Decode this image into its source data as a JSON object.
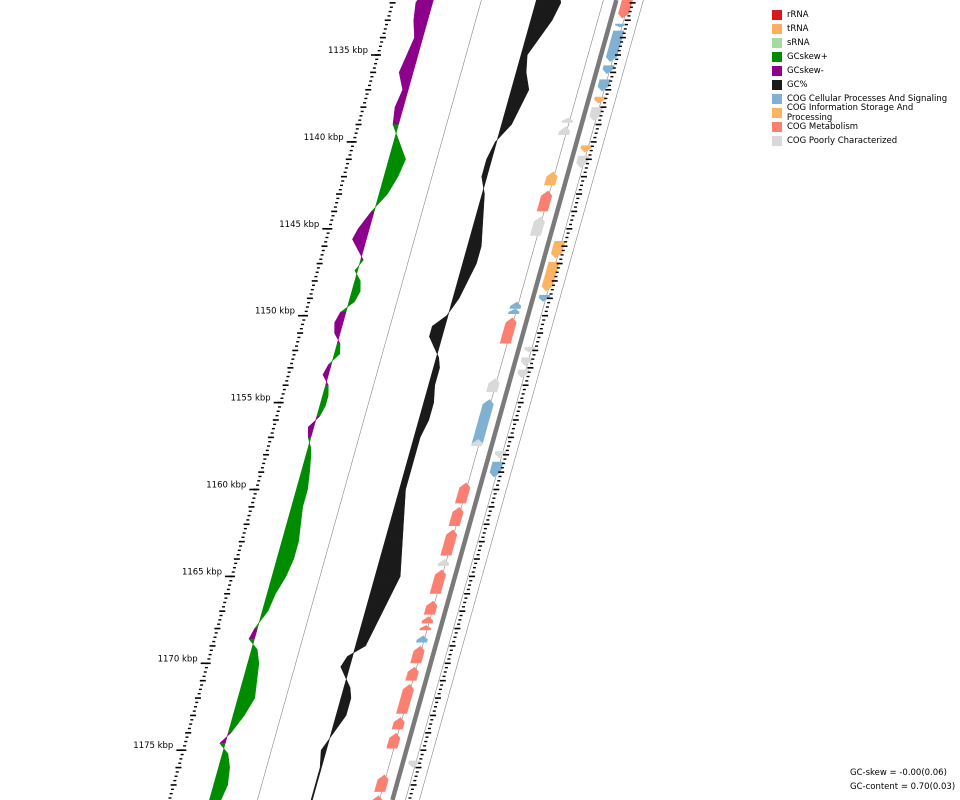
{
  "legend": [
    {
      "label": "rRNA",
      "color": "#d7191c"
    },
    {
      "label": "tRNA",
      "color": "#fdae61"
    },
    {
      "label": "sRNA",
      "color": "#a6dba0"
    },
    {
      "label": "GCskew+",
      "color": "#008c00"
    },
    {
      "label": "GCskew-",
      "color": "#8c008c"
    },
    {
      "label": "GC%",
      "color": "#1a1a1a"
    },
    {
      "label": "COG Cellular Processes And Signaling",
      "color": "#80b1d3"
    },
    {
      "label": "COG Information Storage And Processing",
      "color": "#fdb462"
    },
    {
      "label": "COG Metabolism",
      "color": "#fb8072"
    },
    {
      "label": "COG Poorly Characterized",
      "color": "#d9d9d9"
    }
  ],
  "stats": {
    "gc_skew": "GC-skew = -0.00(0.06)",
    "gc_content": "GC-content = 0.70(0.03)"
  },
  "ticks": [
    {
      "kbp": 1135,
      "label": "1135 kbp"
    },
    {
      "kbp": 1140,
      "label": "1140 kbp"
    },
    {
      "kbp": 1145,
      "label": "1145 kbp"
    },
    {
      "kbp": 1150,
      "label": "1150 kbp"
    },
    {
      "kbp": 1155,
      "label": "1155 kbp"
    },
    {
      "kbp": 1160,
      "label": "1160 kbp"
    },
    {
      "kbp": 1165,
      "label": "1165 kbp"
    },
    {
      "kbp": 1170,
      "label": "1170 kbp"
    },
    {
      "kbp": 1175,
      "label": "1175 kbp"
    }
  ],
  "genes": [
    {
      "start": 1131.0,
      "end": 1131.6,
      "strand": "-",
      "cog": "COG Metabolism"
    },
    {
      "start": 1131.8,
      "end": 1132.9,
      "strand": "-",
      "cog": "COG Metabolism"
    },
    {
      "start": 1133.2,
      "end": 1133.4,
      "strand": "-",
      "cog": "COG Cellular Processes And Signaling"
    },
    {
      "start": 1133.6,
      "end": 1135.4,
      "strand": "-",
      "cog": "COG Cellular Processes And Signaling"
    },
    {
      "start": 1135.6,
      "end": 1136.1,
      "strand": "-",
      "cog": "COG Cellular Processes And Signaling"
    },
    {
      "start": 1136.4,
      "end": 1137.1,
      "strand": "-",
      "cog": "COG Cellular Processes And Signaling"
    },
    {
      "start": 1137.4,
      "end": 1137.8,
      "strand": "-",
      "cog": "COG Information Storage And Processing"
    },
    {
      "start": 1138.0,
      "end": 1138.8,
      "strand": "-",
      "cog": "COG Poorly Characterized"
    },
    {
      "start": 1138.6,
      "end": 1138.9,
      "strand": "+",
      "cog": "COG Poorly Characterized"
    },
    {
      "start": 1139.1,
      "end": 1139.6,
      "strand": "+",
      "cog": "COG Poorly Characterized"
    },
    {
      "start": 1140.2,
      "end": 1140.6,
      "strand": "-",
      "cog": "COG Information Storage And Processing"
    },
    {
      "start": 1140.8,
      "end": 1141.5,
      "strand": "-",
      "cog": "COG Poorly Characterized"
    },
    {
      "start": 1141.7,
      "end": 1142.5,
      "strand": "+",
      "cog": "COG Information Storage And Processing"
    },
    {
      "start": 1142.8,
      "end": 1144.0,
      "strand": "+",
      "cog": "COG Metabolism"
    },
    {
      "start": 1144.3,
      "end": 1145.4,
      "strand": "+",
      "cog": "COG Poorly Characterized"
    },
    {
      "start": 1145.7,
      "end": 1146.7,
      "strand": "-",
      "cog": "COG Information Storage And Processing"
    },
    {
      "start": 1146.9,
      "end": 1148.6,
      "strand": "-",
      "cog": "COG Information Storage And Processing"
    },
    {
      "start": 1148.8,
      "end": 1149.2,
      "strand": "-",
      "cog": "COG Cellular Processes And Signaling"
    },
    {
      "start": 1149.2,
      "end": 1149.6,
      "strand": "+",
      "cog": "COG Cellular Processes And Signaling"
    },
    {
      "start": 1149.6,
      "end": 1149.9,
      "strand": "+",
      "cog": "COG Cellular Processes And Signaling"
    },
    {
      "start": 1150.1,
      "end": 1151.6,
      "strand": "+",
      "cog": "COG Metabolism"
    },
    {
      "start": 1151.8,
      "end": 1152.1,
      "strand": "-",
      "cog": "COG Poorly Characterized"
    },
    {
      "start": 1152.4,
      "end": 1152.9,
      "strand": "-",
      "cog": "COG Poorly Characterized"
    },
    {
      "start": 1153.1,
      "end": 1153.6,
      "strand": "-",
      "cog": "COG Poorly Characterized"
    },
    {
      "start": 1153.6,
      "end": 1154.4,
      "strand": "+",
      "cog": "COG Poorly Characterized"
    },
    {
      "start": 1154.8,
      "end": 1157.4,
      "strand": "+",
      "cog": "COG Cellular Processes And Signaling"
    },
    {
      "start": 1157.1,
      "end": 1157.5,
      "strand": "+",
      "cog": "COG Poorly Characterized"
    },
    {
      "start": 1157.8,
      "end": 1158.2,
      "strand": "-",
      "cog": "COG Poorly Characterized"
    },
    {
      "start": 1158.4,
      "end": 1159.3,
      "strand": "-",
      "cog": "COG Cellular Processes And Signaling"
    },
    {
      "start": 1159.6,
      "end": 1160.8,
      "strand": "+",
      "cog": "COG Metabolism"
    },
    {
      "start": 1161.0,
      "end": 1162.1,
      "strand": "+",
      "cog": "COG Metabolism"
    },
    {
      "start": 1162.3,
      "end": 1163.8,
      "strand": "+",
      "cog": "COG Metabolism"
    },
    {
      "start": 1164.0,
      "end": 1164.4,
      "strand": "+",
      "cog": "COG Poorly Characterized"
    },
    {
      "start": 1164.6,
      "end": 1166.0,
      "strand": "+",
      "cog": "COG Metabolism"
    },
    {
      "start": 1166.4,
      "end": 1167.2,
      "strand": "+",
      "cog": "COG Metabolism"
    },
    {
      "start": 1167.3,
      "end": 1167.7,
      "strand": "+",
      "cog": "COG Metabolism"
    },
    {
      "start": 1167.8,
      "end": 1168.1,
      "strand": "+",
      "cog": "COG Metabolism"
    },
    {
      "start": 1168.4,
      "end": 1168.8,
      "strand": "+",
      "cog": "COG Cellular Processes And Signaling"
    },
    {
      "start": 1169.0,
      "end": 1170.0,
      "strand": "+",
      "cog": "COG Metabolism"
    },
    {
      "start": 1170.2,
      "end": 1171.0,
      "strand": "+",
      "cog": "COG Metabolism"
    },
    {
      "start": 1171.2,
      "end": 1172.9,
      "strand": "+",
      "cog": "COG Metabolism"
    },
    {
      "start": 1173.1,
      "end": 1173.8,
      "strand": "+",
      "cog": "COG Metabolism"
    },
    {
      "start": 1174.0,
      "end": 1174.9,
      "strand": "+",
      "cog": "COG Metabolism"
    },
    {
      "start": 1175.6,
      "end": 1176.0,
      "strand": "-",
      "cog": "COG Poorly Characterized"
    },
    {
      "start": 1176.4,
      "end": 1177.4,
      "strand": "+",
      "cog": "COG Metabolism"
    },
    {
      "start": 1177.6,
      "end": 1178.4,
      "strand": "+",
      "cog": "COG Metabolism"
    },
    {
      "start": 1178.2,
      "end": 1178.6,
      "strand": "-",
      "cog": "COG Poorly Characterized"
    }
  ],
  "gc_skew": [
    [
      1131.0,
      -0.04
    ],
    [
      1132.0,
      -0.06
    ],
    [
      1133.0,
      -0.05
    ],
    [
      1134.0,
      -0.03
    ],
    [
      1135.0,
      -0.04
    ],
    [
      1136.0,
      -0.05
    ],
    [
      1137.0,
      -0.02
    ],
    [
      1138.0,
      -0.03
    ],
    [
      1139.0,
      -0.02
    ],
    [
      1140.0,
      0.02
    ],
    [
      1141.0,
      0.06
    ],
    [
      1142.0,
      0.05
    ],
    [
      1143.0,
      0.03
    ],
    [
      1144.0,
      -0.01
    ],
    [
      1145.0,
      -0.04
    ],
    [
      1145.6,
      -0.05
    ],
    [
      1146.2,
      -0.02
    ],
    [
      1146.8,
      0.01
    ],
    [
      1147.4,
      -0.01
    ],
    [
      1148.0,
      0.02
    ],
    [
      1148.6,
      0.03
    ],
    [
      1149.2,
      0.02
    ],
    [
      1149.8,
      -0.02
    ],
    [
      1150.4,
      -0.03
    ],
    [
      1151.0,
      -0.02
    ],
    [
      1151.6,
      0.01
    ],
    [
      1152.2,
      0.02
    ],
    [
      1152.8,
      -0.01
    ],
    [
      1153.4,
      -0.02
    ],
    [
      1154.0,
      0.01
    ],
    [
      1154.6,
      0.02
    ],
    [
      1155.2,
      0.02
    ],
    [
      1155.8,
      0.01
    ],
    [
      1156.4,
      -0.02
    ],
    [
      1157.0,
      -0.01
    ],
    [
      1157.6,
      0.01
    ],
    [
      1158.2,
      0.02
    ],
    [
      1159.0,
      0.03
    ],
    [
      1160.0,
      0.04
    ],
    [
      1161.0,
      0.04
    ],
    [
      1162.0,
      0.05
    ],
    [
      1163.0,
      0.06
    ],
    [
      1164.0,
      0.06
    ],
    [
      1165.0,
      0.05
    ],
    [
      1166.0,
      0.03
    ],
    [
      1167.0,
      0.02
    ],
    [
      1168.0,
      -0.01
    ],
    [
      1168.6,
      -0.02
    ],
    [
      1169.2,
      0.02
    ],
    [
      1170.0,
      0.04
    ],
    [
      1171.0,
      0.05
    ],
    [
      1172.0,
      0.06
    ],
    [
      1173.0,
      0.04
    ],
    [
      1174.0,
      0.01
    ],
    [
      1174.6,
      -0.02
    ],
    [
      1175.2,
      0.02
    ],
    [
      1176.0,
      0.04
    ],
    [
      1177.0,
      0.05
    ],
    [
      1178.0,
      0.04
    ],
    [
      1178.8,
      0.02
    ]
  ],
  "gc_content": [
    [
      1131.0,
      0.72
    ],
    [
      1132.0,
      0.74
    ],
    [
      1133.0,
      0.73
    ],
    [
      1134.0,
      0.71
    ],
    [
      1135.0,
      0.69
    ],
    [
      1136.0,
      0.7
    ],
    [
      1137.0,
      0.72
    ],
    [
      1138.0,
      0.71
    ],
    [
      1139.0,
      0.7
    ],
    [
      1140.0,
      0.67
    ],
    [
      1141.0,
      0.66
    ],
    [
      1142.0,
      0.66
    ],
    [
      1143.0,
      0.68
    ],
    [
      1144.0,
      0.69
    ],
    [
      1145.0,
      0.7
    ],
    [
      1146.0,
      0.71
    ],
    [
      1147.0,
      0.71
    ],
    [
      1148.0,
      0.7
    ],
    [
      1149.0,
      0.69
    ],
    [
      1150.0,
      0.67
    ],
    [
      1150.6,
      0.64
    ],
    [
      1151.2,
      0.64
    ],
    [
      1151.8,
      0.66
    ],
    [
      1152.4,
      0.68
    ],
    [
      1153.0,
      0.69
    ],
    [
      1154.0,
      0.69
    ],
    [
      1155.0,
      0.7
    ],
    [
      1156.0,
      0.7
    ],
    [
      1157.0,
      0.69
    ],
    [
      1158.0,
      0.69
    ],
    [
      1159.0,
      0.69
    ],
    [
      1160.0,
      0.69
    ],
    [
      1161.0,
      0.7
    ],
    [
      1162.0,
      0.71
    ],
    [
      1163.0,
      0.72
    ],
    [
      1164.0,
      0.73
    ],
    [
      1165.0,
      0.74
    ],
    [
      1166.0,
      0.73
    ],
    [
      1167.0,
      0.72
    ],
    [
      1168.0,
      0.71
    ],
    [
      1169.0,
      0.7
    ],
    [
      1169.6,
      0.66
    ],
    [
      1170.2,
      0.65
    ],
    [
      1170.8,
      0.67
    ],
    [
      1171.4,
      0.69
    ],
    [
      1172.0,
      0.7
    ],
    [
      1173.0,
      0.7
    ],
    [
      1174.0,
      0.68
    ],
    [
      1175.0,
      0.66
    ],
    [
      1176.0,
      0.67
    ],
    [
      1177.0,
      0.67
    ],
    [
      1178.0,
      0.67
    ],
    [
      1178.8,
      0.66
    ]
  ]
}
